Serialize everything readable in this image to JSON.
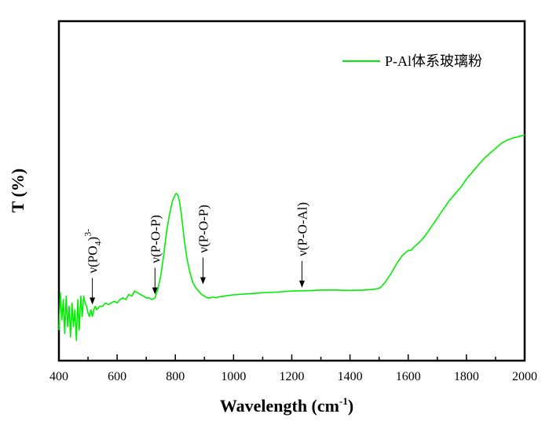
{
  "chart_data": {
    "type": "line",
    "title": "",
    "xlabel": "Wavelength (cm",
    "xlabel_sup": "-1",
    "xlabel_tail": ")",
    "ylabel": "T (%)",
    "xlim": [
      400,
      2000
    ],
    "ylim": [
      0,
      100
    ],
    "y_ticks_labeled": false,
    "grid": false,
    "legend_position": "top-right",
    "x_ticks": [
      400,
      600,
      800,
      1000,
      1200,
      1400,
      1600,
      1800,
      2000
    ],
    "x_tick_labels": [
      "400",
      "600",
      "800",
      "1000",
      "1200",
      "1400",
      "1600",
      "1800",
      "2000"
    ],
    "x_minor_ticks": [
      500,
      700,
      900,
      1100,
      1300,
      1500,
      1700,
      1900
    ],
    "series": [
      {
        "name": "P-Al体系玻璃粉",
        "color": "#00ee00",
        "x": [
          400,
          405,
          410,
          415,
          420,
          425,
          430,
          435,
          440,
          445,
          450,
          455,
          460,
          465,
          470,
          475,
          480,
          485,
          490,
          495,
          500,
          505,
          510,
          515,
          520,
          525,
          530,
          540,
          550,
          560,
          570,
          580,
          590,
          600,
          610,
          620,
          630,
          640,
          650,
          660,
          670,
          680,
          690,
          700,
          710,
          720,
          730,
          740,
          750,
          760,
          770,
          780,
          790,
          800,
          805,
          810,
          815,
          820,
          825,
          830,
          840,
          850,
          860,
          870,
          880,
          890,
          900,
          910,
          920,
          930,
          940,
          950,
          960,
          980,
          1000,
          1050,
          1100,
          1150,
          1200,
          1250,
          1300,
          1350,
          1400,
          1450,
          1480,
          1500,
          1510,
          1520,
          1540,
          1560,
          1580,
          1600,
          1610,
          1620,
          1640,
          1660,
          1680,
          1700,
          1720,
          1740,
          1760,
          1780,
          1800,
          1820,
          1840,
          1860,
          1880,
          1900,
          1920,
          1940,
          1960,
          1980,
          2000
        ],
        "y": [
          9,
          20,
          12,
          18,
          8,
          19,
          10,
          16,
          7,
          17,
          10,
          15,
          6,
          18,
          9,
          19,
          13,
          19,
          17,
          16,
          14,
          13,
          15,
          13,
          15,
          16,
          15,
          16,
          16,
          17,
          16.5,
          17,
          17.5,
          17,
          18,
          18.5,
          18,
          19.5,
          19,
          20.5,
          20,
          19.5,
          19,
          18.5,
          18.5,
          18,
          18.5,
          21,
          25,
          31,
          38,
          43,
          47,
          49,
          49.2,
          48.5,
          46.5,
          43.5,
          40,
          36,
          30,
          26,
          23,
          21.5,
          20.5,
          19.5,
          19,
          18.5,
          18.5,
          18.7,
          18.5,
          18.8,
          18.9,
          19.2,
          19.4,
          19.7,
          20,
          20.2,
          20.5,
          20.6,
          20.8,
          20.8,
          20.7,
          20.8,
          21,
          21.3,
          22,
          23,
          25.5,
          28.5,
          31,
          32.5,
          32.5,
          33.5,
          35,
          37,
          39.5,
          42,
          44.5,
          47,
          49,
          51,
          53.5,
          55.5,
          57.5,
          59.5,
          61,
          62.5,
          64,
          65,
          65.6,
          66,
          66.5
        ]
      }
    ],
    "annotations": [
      {
        "label": "ν(PO",
        "sub": "4",
        "tail": ")",
        "sup": "3-",
        "x": 515,
        "arrow_tip_T": 16.5
      },
      {
        "label": "ν(P-O-P)",
        "x": 730,
        "arrow_tip_T": 19.5
      },
      {
        "label": "ν(P-O-P)",
        "x": 895,
        "arrow_tip_T": 22.5
      },
      {
        "label": "ν(P-O-Al)",
        "x": 1235,
        "arrow_tip_T": 21.5
      }
    ]
  }
}
